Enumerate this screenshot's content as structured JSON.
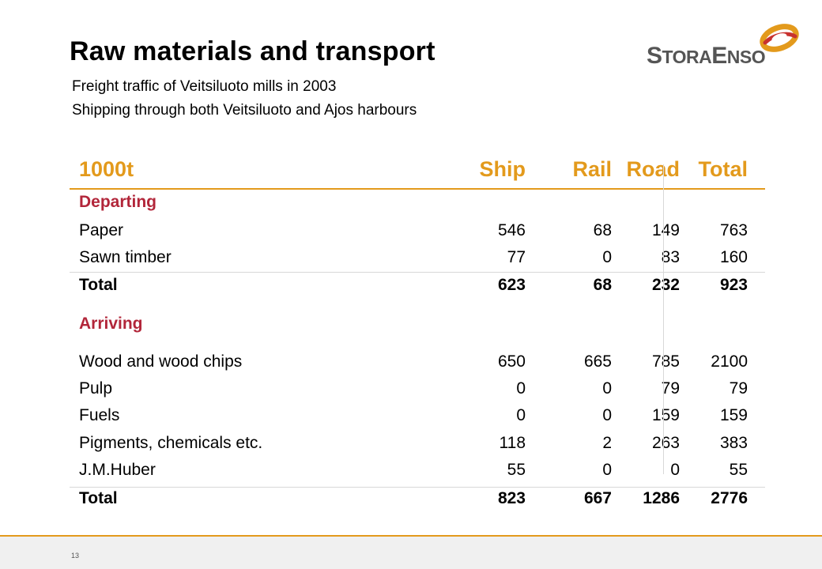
{
  "title": "Raw materials and transport",
  "subtitle_line1": "Freight traffic of Veitsiluoto mills in 2003",
  "subtitle_line2": "Shipping through both Veitsiluoto and Ajos harbours",
  "logo": {
    "text_big1": "S",
    "text_small1": "TORA",
    "text_big2": "E",
    "text_small2": "NSO",
    "icon": "storaenso-swirl-icon"
  },
  "table": {
    "headers": {
      "unit": "1000t",
      "ship": "Ship",
      "rail": "Rail",
      "road": "Road",
      "total": "Total"
    },
    "departing": {
      "label": "Departing",
      "rows": [
        {
          "name": "Paper",
          "ship": "546",
          "rail": "68",
          "road": "149",
          "total": "763"
        },
        {
          "name": "Sawn timber",
          "ship": "77",
          "rail": "0",
          "road": "83",
          "total": "160"
        }
      ],
      "total": {
        "name": "Total",
        "ship": "623",
        "rail": "68",
        "road": "232",
        "total": "923"
      }
    },
    "arriving": {
      "label": "Arriving",
      "rows": [
        {
          "name": "Wood and wood chips",
          "ship": "650",
          "rail": "665",
          "road": "785",
          "total": "2100"
        },
        {
          "name": "Pulp",
          "ship": "0",
          "rail": "0",
          "road": "79",
          "total": "79"
        },
        {
          "name": "Fuels",
          "ship": "0",
          "rail": "0",
          "road": "159",
          "total": "159"
        },
        {
          "name": "Pigments, chemicals etc.",
          "ship": "118",
          "rail": "2",
          "road": "263",
          "total": "383"
        },
        {
          "name": "J.M.Huber",
          "ship": "55",
          "rail": "0",
          "road": "0",
          "total": "55"
        }
      ],
      "total": {
        "name": "Total",
        "ship": "823",
        "rail": "667",
        "road": "1286",
        "total": "2776"
      }
    }
  },
  "page_number": "13",
  "colors": {
    "accent": "#e39a1c",
    "section": "#b2263a",
    "logo_gray": "#555555",
    "logo_red": "#c8322f"
  }
}
